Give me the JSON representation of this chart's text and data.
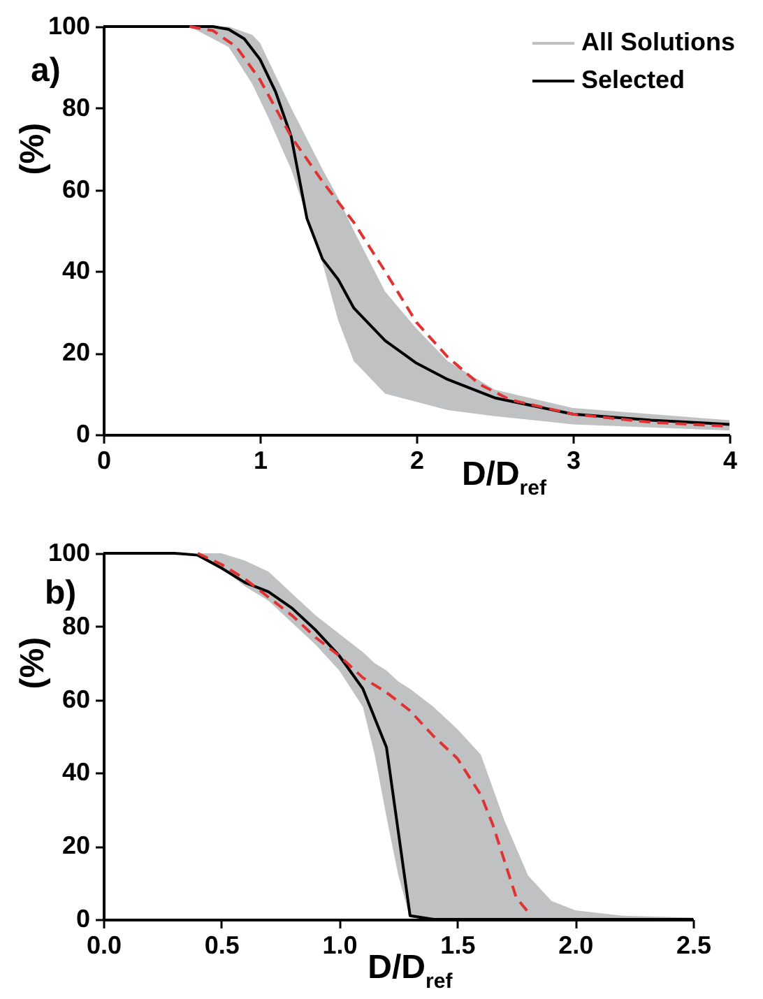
{
  "chart_data": [
    {
      "type": "line",
      "xlabel": "D/D$_{ref}$",
      "ylabel": "(%)",
      "annotations": [
        "a)"
      ],
      "xlim": [
        0,
        4
      ],
      "xticks": [
        0,
        1,
        2,
        3,
        4
      ],
      "ylim": [
        0,
        100
      ],
      "yticks": [
        0,
        20,
        40,
        60,
        80,
        100
      ],
      "grid": false,
      "legend": "top right",
      "series": [
        {
          "name": "All Solutions",
          "type": "area",
          "color": "#c0c1c3",
          "x": [
            0,
            0.55,
            0.8,
            0.95,
            1.0,
            1.05,
            1.2,
            1.4,
            1.5,
            1.6,
            1.8,
            2.0,
            2.2,
            2.5,
            3.0,
            4.0
          ],
          "values": [
            null,
            null,
            null,
            null,
            null,
            null,
            null,
            null,
            null,
            null,
            null,
            null,
            null,
            null,
            null,
            null
          ],
          "upper": [
            100,
            100,
            100,
            98,
            96,
            92,
            80,
            65,
            58,
            50,
            35,
            26,
            18,
            11,
            6.5,
            3.5
          ],
          "lower": [
            100,
            100,
            95,
            86,
            82,
            78,
            65,
            42,
            28,
            18,
            10,
            8,
            6,
            4.5,
            2.5,
            1
          ]
        },
        {
          "name": "Selected",
          "color": "#000000",
          "line_style": "solid",
          "x": [
            0,
            0.7,
            0.8,
            0.9,
            1.0,
            1.1,
            1.2,
            1.3,
            1.4,
            1.5,
            1.6,
            1.8,
            2.0,
            2.2,
            2.5,
            3.0,
            3.5,
            4.0
          ],
          "values": [
            100,
            100,
            99.3,
            97,
            92,
            84,
            73,
            53,
            43,
            38,
            31,
            23,
            17.5,
            13.5,
            9,
            5,
            3.5,
            2.5
          ]
        },
        {
          "color": "#e03232",
          "line_style": "dashed",
          "x": [
            0.55,
            0.7,
            0.85,
            1.0,
            1.2,
            1.4,
            1.6,
            1.8,
            2.0,
            2.2,
            2.4,
            2.6,
            3.0,
            3.5,
            4.0
          ],
          "values": [
            100,
            99,
            95,
            87,
            73,
            62,
            52,
            40,
            27.5,
            19,
            12.4,
            8.5,
            5,
            3,
            2
          ]
        }
      ]
    },
    {
      "type": "line",
      "xlabel": "D/D$_{ref}$",
      "ylabel": "(%)",
      "annotations": [
        "b)"
      ],
      "xlim": [
        0,
        2.5
      ],
      "xticks": [
        {
          "value": 0,
          "label": "0.0"
        },
        0.5,
        {
          "value": 1,
          "label": "1.0"
        },
        1.5,
        {
          "value": 2,
          "label": "2.0"
        },
        2.5
      ],
      "ylim": [
        0,
        100
      ],
      "yticks": [
        0,
        20,
        40,
        60,
        80,
        100
      ],
      "grid": false,
      "series": [
        {
          "type": "area",
          "color": "#c0c1c3",
          "x": [
            0.4,
            0.5,
            0.6,
            0.7,
            0.8,
            0.9,
            1.0,
            1.1,
            1.15,
            1.2,
            1.25,
            1.3,
            1.4,
            1.5,
            1.6,
            1.7,
            1.8,
            1.9,
            2.0,
            2.2,
            2.5
          ],
          "values": [
            null,
            null,
            null,
            null,
            null,
            null,
            null,
            null,
            null,
            null,
            null,
            null,
            null,
            null,
            null,
            null,
            null,
            null,
            null,
            null,
            null
          ],
          "upper": [
            100,
            100,
            98,
            95,
            89,
            83,
            78,
            73,
            70,
            68,
            65,
            63,
            58,
            52,
            45,
            27,
            12,
            5,
            2.5,
            1,
            0.5
          ],
          "lower": [
            99.5,
            96,
            91,
            87,
            81,
            75,
            68,
            58,
            45,
            28,
            12,
            0.5,
            0,
            0,
            0,
            0,
            0,
            0,
            0,
            0,
            0
          ]
        },
        {
          "color": "#000000",
          "line_style": "solid",
          "x": [
            0,
            0.3,
            0.4,
            0.5,
            0.6,
            0.7,
            0.8,
            0.9,
            1.0,
            1.1,
            1.2,
            1.3,
            1.4,
            2.5
          ],
          "values": [
            100,
            100,
            99.5,
            96,
            92,
            89.5,
            85,
            79,
            72,
            63,
            47,
            1,
            0,
            0
          ]
        },
        {
          "color": "#e03232",
          "line_style": "dashed",
          "x": [
            0.4,
            0.5,
            0.6,
            0.7,
            0.8,
            0.9,
            1.0,
            1.1,
            1.2,
            1.3,
            1.4,
            1.5,
            1.55,
            1.6,
            1.65,
            1.7,
            1.75,
            1.8
          ],
          "values": [
            100,
            97,
            93,
            88,
            83,
            77,
            72,
            66,
            62,
            57,
            50,
            44,
            39,
            34,
            26,
            16,
            6,
            2
          ]
        }
      ]
    }
  ]
}
